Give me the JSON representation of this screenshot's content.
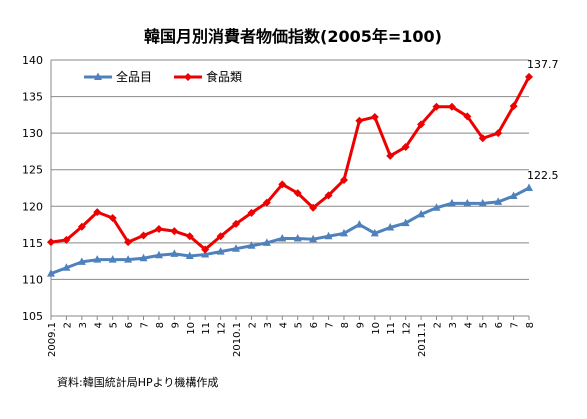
{
  "chart_data": {
    "type": "line",
    "title": "韓国月別消費者物価指数(2005年=100)",
    "source": "資料:韓国統計局HPより機構作成",
    "ylim": [
      105,
      140
    ],
    "yticks": [
      "105",
      "110",
      "115",
      "120",
      "125",
      "130",
      "135",
      "140"
    ],
    "grid": "horizontal",
    "legend_position": "top-left",
    "categories": [
      "2009.1",
      "2",
      "3",
      "4",
      "5",
      "6",
      "7",
      "8",
      "9",
      "10",
      "11",
      "12",
      "2010.1",
      "2",
      "3",
      "4",
      "5",
      "6",
      "7",
      "8",
      "9",
      "10",
      "11",
      "12",
      "2011.1",
      "2",
      "3",
      "4",
      "5",
      "6",
      "7",
      "8"
    ],
    "series": [
      {
        "name": "全品目",
        "color": "#4F81BD",
        "marker": "triangle",
        "values": [
          110.8,
          111.6,
          112.4,
          112.7,
          112.7,
          112.7,
          112.9,
          113.3,
          113.5,
          113.2,
          113.4,
          113.8,
          114.2,
          114.6,
          115.0,
          115.6,
          115.6,
          115.5,
          115.9,
          116.3,
          117.5,
          116.3,
          117.1,
          117.7,
          118.9,
          119.8,
          120.4,
          120.4,
          120.4,
          120.6,
          121.4,
          122.5
        ],
        "end_label": "122.5"
      },
      {
        "name": "食品類",
        "color": "#EE0000",
        "marker": "diamond",
        "values": [
          115.1,
          115.4,
          117.2,
          119.2,
          118.4,
          115.1,
          116.0,
          116.9,
          116.6,
          115.9,
          114.1,
          115.9,
          117.6,
          119.1,
          120.5,
          123.0,
          121.8,
          119.8,
          121.5,
          123.6,
          131.7,
          132.2,
          126.9,
          128.1,
          131.2,
          133.6,
          133.6,
          132.3,
          129.3,
          130.0,
          133.7,
          137.7
        ],
        "end_label": "137.7"
      }
    ]
  }
}
